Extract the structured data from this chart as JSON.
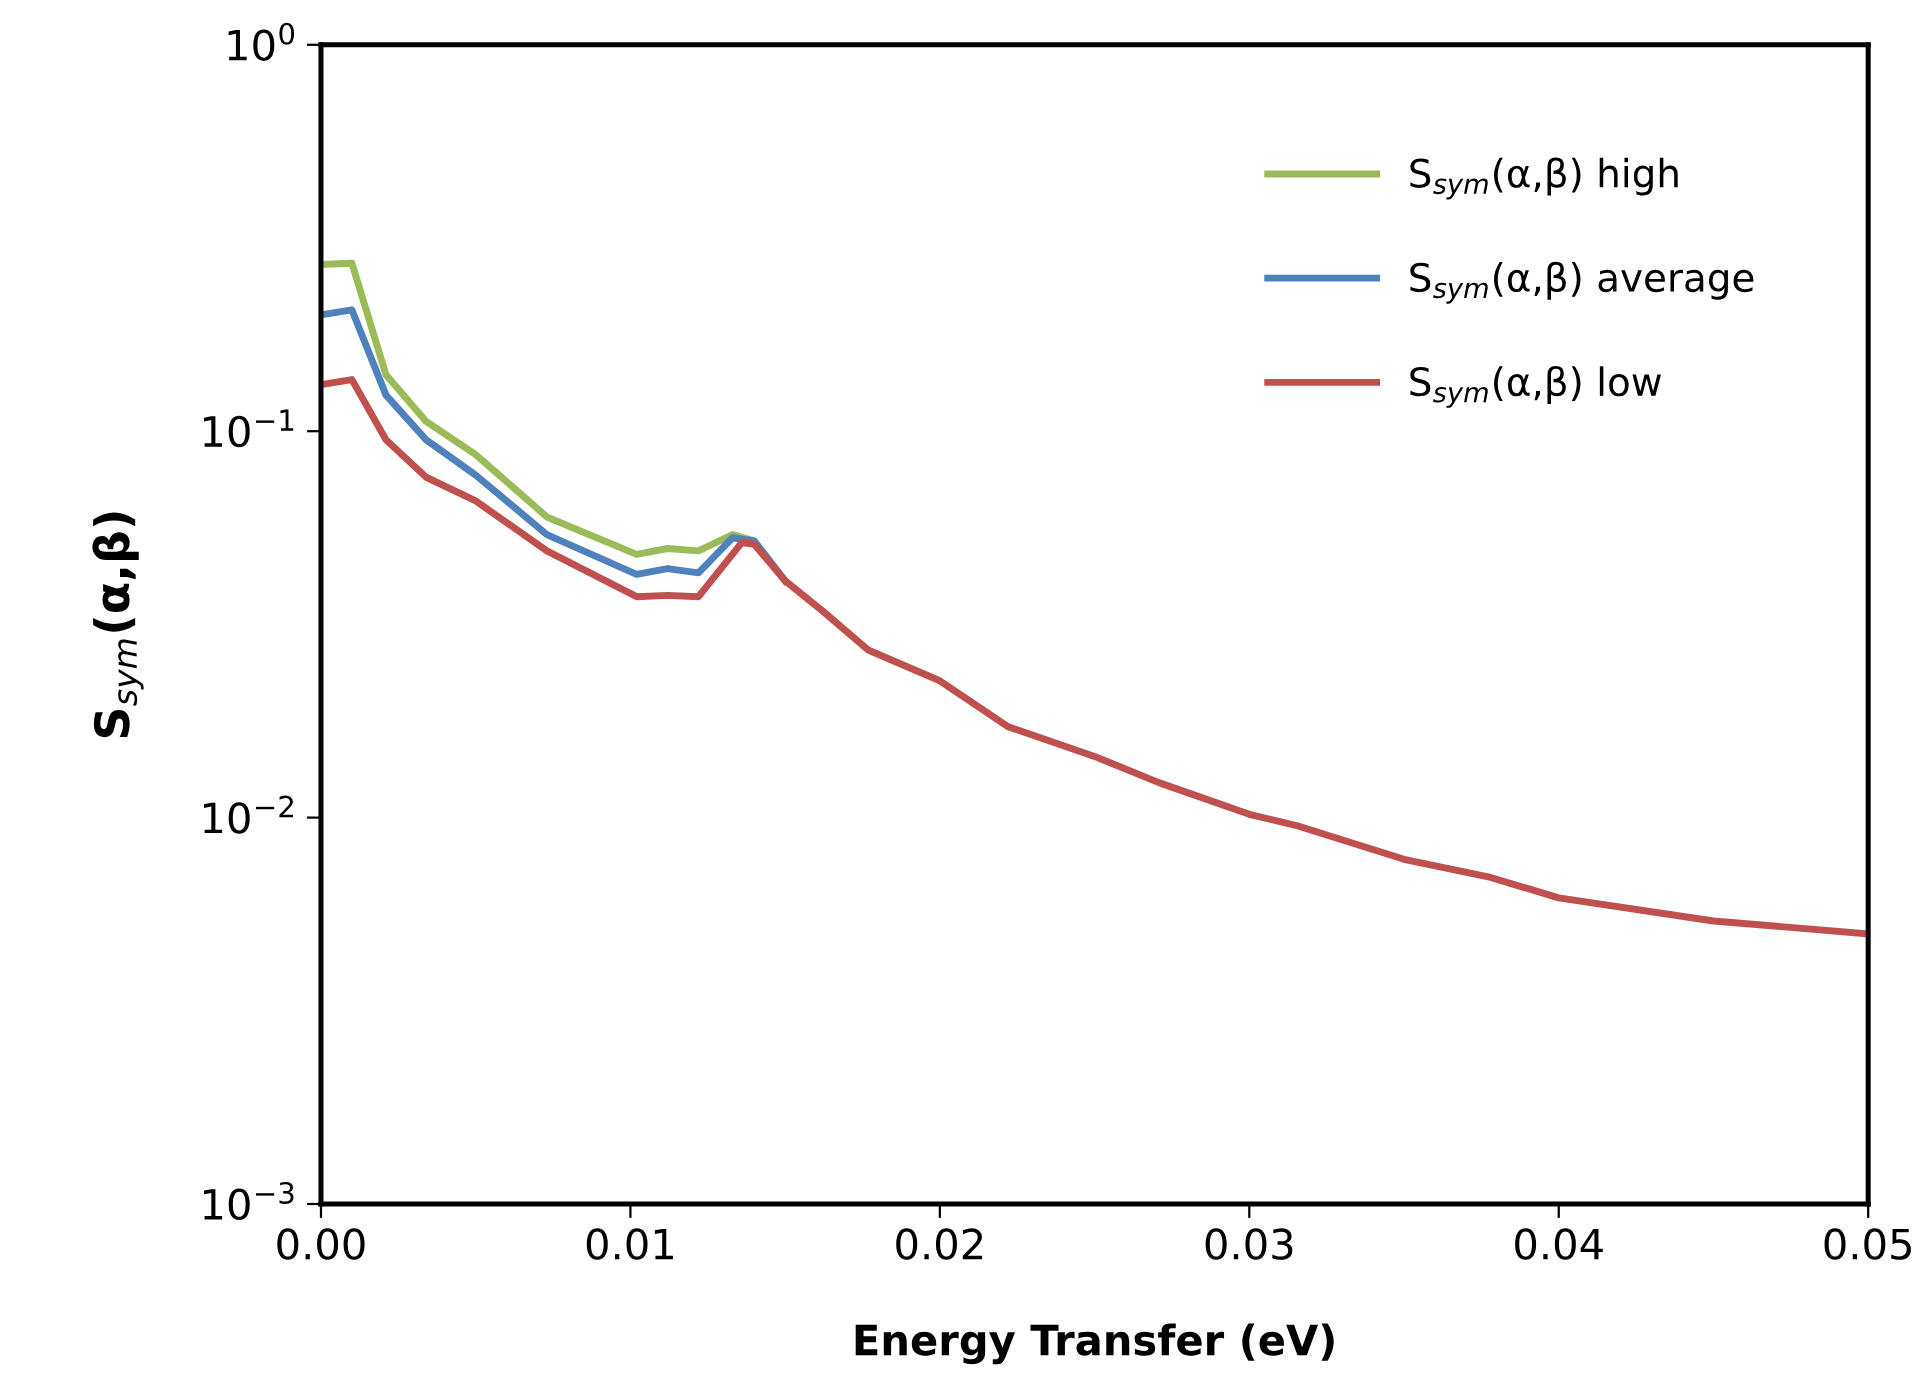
{
  "chart_data": {
    "type": "line",
    "xlabel": "Energy Transfer (eV)",
    "ylabel": "S$_{sym}$(α,β)",
    "log": "y",
    "xlim": [
      0,
      0.05
    ],
    "xticks": [
      {
        "value": 0,
        "label": "0.00"
      },
      {
        "value": 0.01,
        "label": "0.01"
      },
      {
        "value": 0.02,
        "label": "0.02"
      },
      {
        "value": 0.03,
        "label": "0.03"
      },
      {
        "value": 0.04,
        "label": "0.04"
      },
      {
        "value": 0.05,
        "label": "0.05"
      }
    ],
    "ylim": [
      0.001,
      1
    ],
    "yticks": [
      {
        "value": 0.001,
        "label": "10$^{−3}$"
      },
      {
        "value": 0.01,
        "label": "10$^{−2}$"
      },
      {
        "value": 0.1,
        "label": "10$^{−1}$"
      },
      {
        "value": 1,
        "label": "10$^{0}$"
      }
    ],
    "grid": false,
    "legend": "top right",
    "marker": "none",
    "line_style": "solid",
    "series": [
      {
        "name": "S$_{sym}$(α,β) high",
        "color": "#9bbb59",
        "x": [
          0,
          0.001,
          0.0021,
          0.0034,
          0.005,
          0.0073,
          0.0102,
          0.0112,
          0.0122,
          0.0133,
          0.014,
          0.015
        ],
        "values": [
          0.27,
          0.272,
          0.14,
          0.106,
          0.087,
          0.06,
          0.048,
          0.0497,
          0.049,
          0.054,
          0.052,
          0.041
        ]
      },
      {
        "name": "S$_{sym}$(α,β) average",
        "color": "#4f81bd",
        "x": [
          0,
          0.001,
          0.0021,
          0.0034,
          0.005,
          0.0073,
          0.0102,
          0.0112,
          0.0122,
          0.0133,
          0.014,
          0.015
        ],
        "values": [
          0.2,
          0.206,
          0.124,
          0.095,
          0.077,
          0.054,
          0.0426,
          0.0441,
          0.043,
          0.053,
          0.052,
          0.041
        ]
      },
      {
        "name": "S$_{sym}$(α,β) low",
        "color": "#c0504d",
        "x": [
          0,
          0.001,
          0.0021,
          0.0034,
          0.005,
          0.0073,
          0.0102,
          0.0112,
          0.0122,
          0.0136,
          0.014,
          0.015,
          0.0162,
          0.0177,
          0.02,
          0.0222,
          0.025,
          0.0271,
          0.03,
          0.0316,
          0.035,
          0.0378,
          0.04,
          0.045,
          0.05
        ],
        "values": [
          0.132,
          0.136,
          0.095,
          0.076,
          0.066,
          0.049,
          0.0373,
          0.0376,
          0.0373,
          0.0515,
          0.051,
          0.041,
          0.0343,
          0.0271,
          0.0226,
          0.0172,
          0.0144,
          0.0123,
          0.0102,
          0.0095,
          0.0078,
          0.007,
          0.0062,
          0.0054,
          0.005
        ]
      }
    ]
  }
}
